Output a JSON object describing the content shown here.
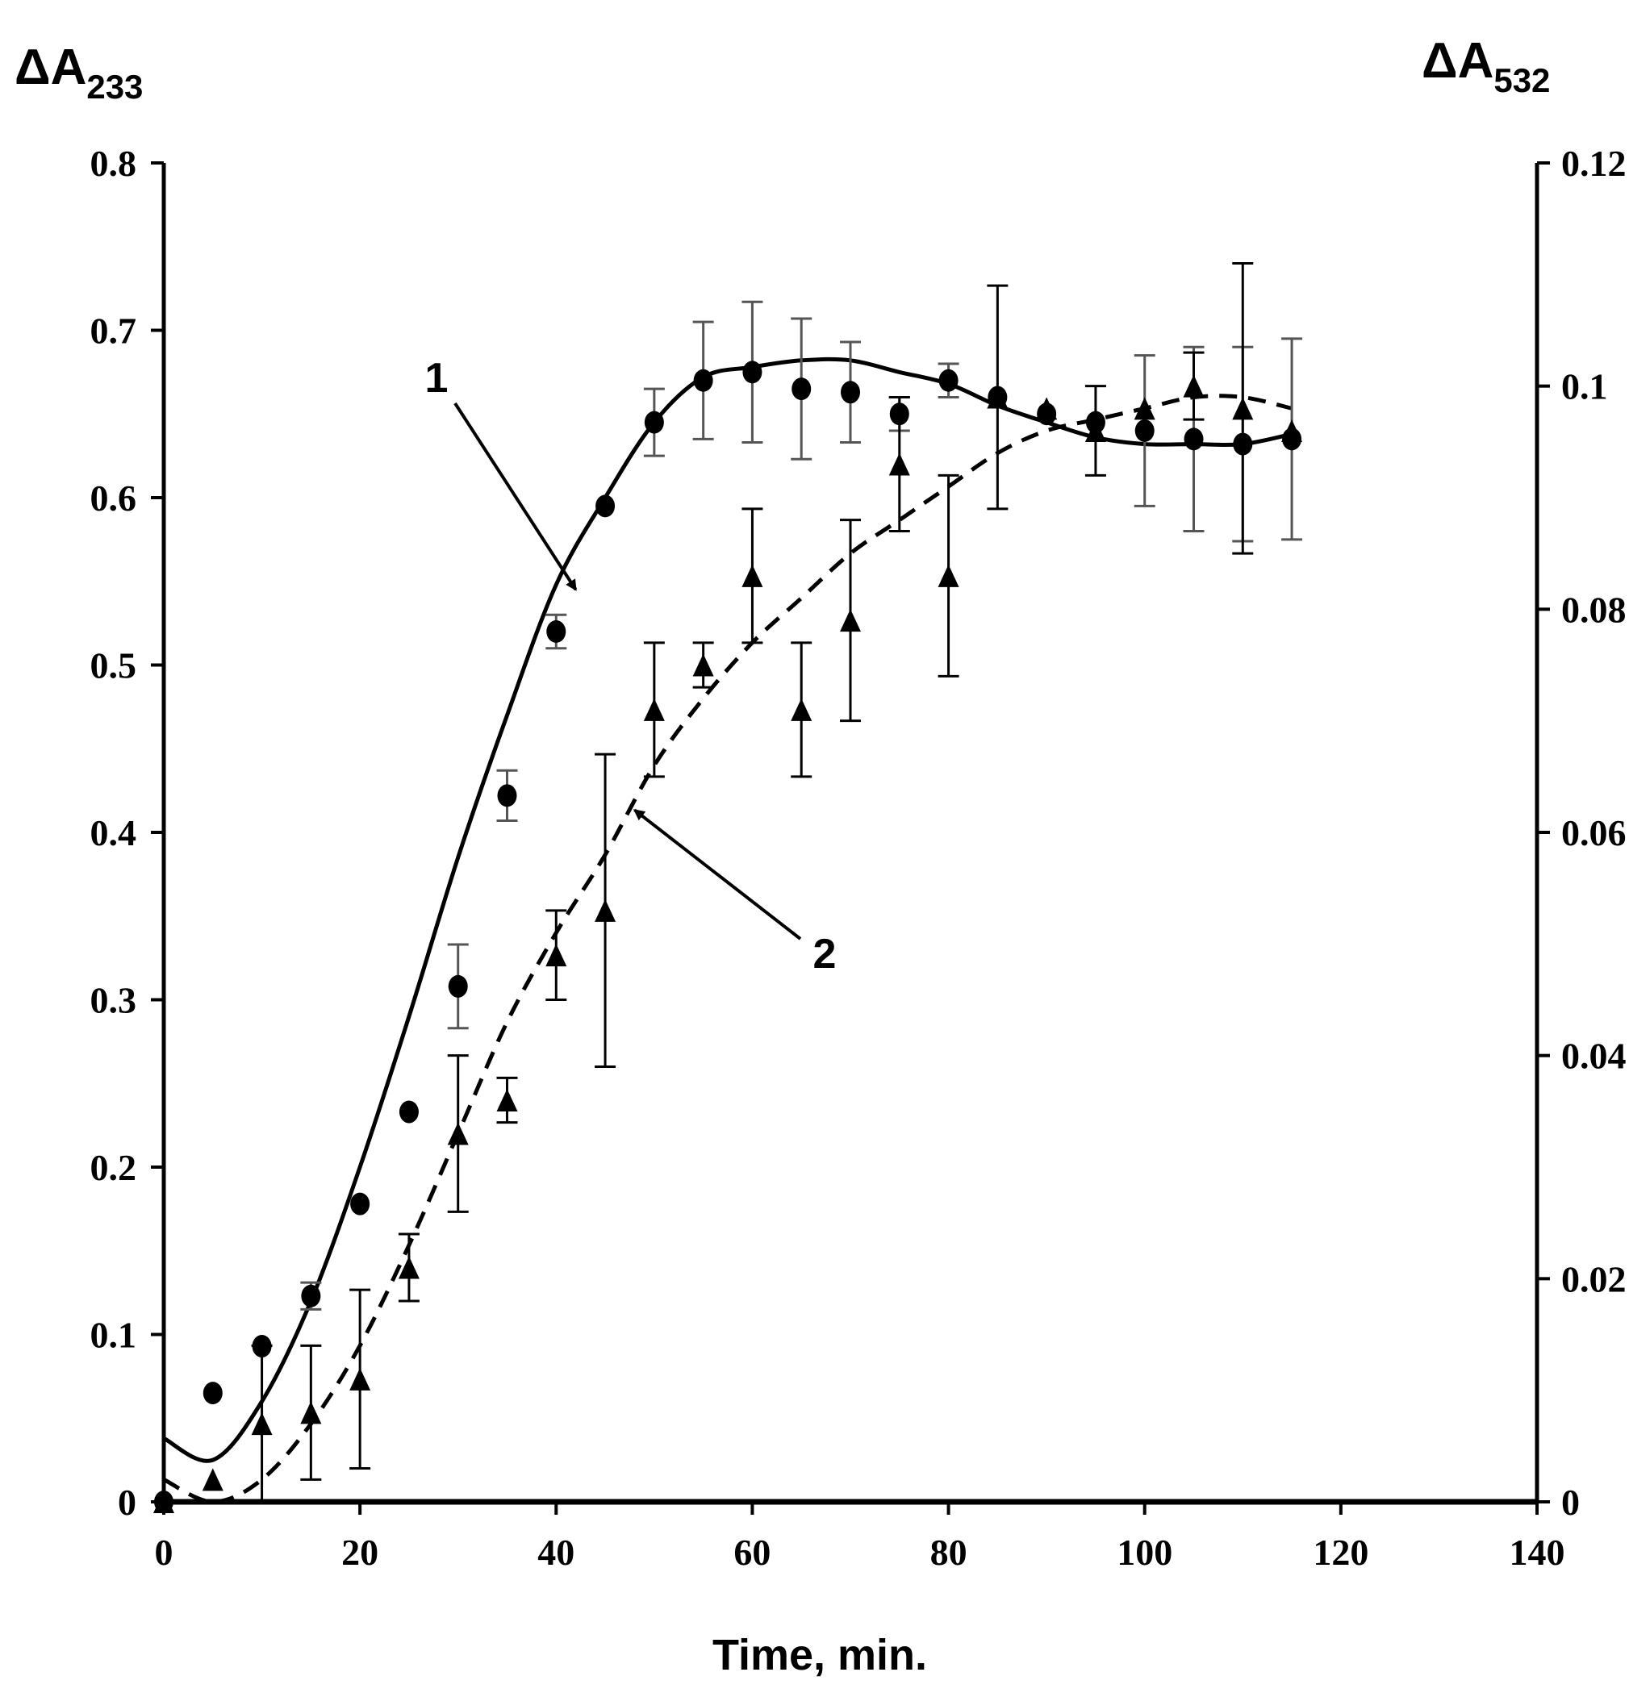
{
  "chart_data": {
    "type": "scatter",
    "xlabel": "Time, min.",
    "ylabel_left": {
      "main": "ΔA",
      "sub": "233"
    },
    "ylabel_right": {
      "main": "ΔA",
      "sub": "532"
    },
    "xlim": [
      0,
      140
    ],
    "ylim_left": [
      0,
      0.8
    ],
    "ylim_right": [
      0,
      0.12
    ],
    "x_ticks": [
      "0",
      "20",
      "40",
      "60",
      "80",
      "100",
      "120",
      "140"
    ],
    "y_ticks_left": [
      "0",
      "0.1",
      "0.2",
      "0.3",
      "0.4",
      "0.5",
      "0.6",
      "0.7",
      "0.8"
    ],
    "y_ticks_right": [
      "0",
      "0.02",
      "0.04",
      "0.06",
      "0.08",
      "0.1",
      "0.12"
    ],
    "grid": false,
    "series": [
      {
        "marker": "circle",
        "axis": "left",
        "line_style": "solid",
        "x": [
          0,
          5,
          10,
          15,
          20,
          25,
          30,
          35,
          40,
          45,
          50,
          55,
          60,
          65,
          70,
          75,
          80,
          85,
          90,
          95,
          100,
          105,
          110,
          115
        ],
        "y": [
          0.0,
          0.065,
          0.093,
          0.123,
          0.178,
          0.233,
          0.308,
          0.422,
          0.52,
          0.595,
          0.645,
          0.67,
          0.675,
          0.665,
          0.663,
          0.65,
          0.67,
          0.66,
          0.65,
          0.645,
          0.64,
          0.635,
          0.632,
          0.635
        ],
        "err": [
          0.0,
          0.0,
          0.0,
          0.008,
          0.0,
          0.0,
          0.025,
          0.015,
          0.01,
          0.0,
          0.02,
          0.035,
          0.042,
          0.042,
          0.03,
          0.01,
          0.01,
          0.0,
          0.0,
          0.0,
          0.045,
          0.055,
          0.058,
          0.06
        ],
        "fit_x": [
          0,
          5,
          10,
          15,
          20,
          25,
          30,
          35,
          40,
          45,
          50,
          55,
          60,
          65,
          70,
          75,
          80,
          85,
          90,
          95,
          100,
          105,
          110,
          115
        ],
        "fit_y": [
          0.038,
          0.025,
          0.06,
          0.12,
          0.2,
          0.29,
          0.385,
          0.47,
          0.548,
          0.6,
          0.645,
          0.672,
          0.678,
          0.682,
          0.682,
          0.675,
          0.668,
          0.655,
          0.645,
          0.636,
          0.632,
          0.632,
          0.632,
          0.638
        ]
      },
      {
        "marker": "triangle",
        "axis": "right",
        "line_style": "dashed",
        "x": [
          0,
          5,
          10,
          15,
          20,
          25,
          30,
          35,
          40,
          45,
          50,
          55,
          60,
          65,
          70,
          75,
          80,
          85,
          90,
          95,
          100,
          105,
          110,
          115
        ],
        "y": [
          0.0,
          0.002,
          0.007,
          0.008,
          0.011,
          0.021,
          0.033,
          0.036,
          0.049,
          0.053,
          0.071,
          0.075,
          0.083,
          0.071,
          0.079,
          0.093,
          0.083,
          0.099,
          0.098,
          0.096,
          0.098,
          0.1,
          0.098,
          0.096
        ],
        "err": [
          0.0,
          0.0,
          0.007,
          0.006,
          0.008,
          0.003,
          0.007,
          0.002,
          0.004,
          0.014,
          0.006,
          0.002,
          0.006,
          0.006,
          0.009,
          0.006,
          0.009,
          0.01,
          0.0,
          0.004,
          0.0,
          0.003,
          0.013,
          0.0
        ],
        "fit_x": [
          0,
          5,
          10,
          15,
          20,
          25,
          30,
          35,
          40,
          45,
          50,
          55,
          60,
          65,
          70,
          75,
          80,
          85,
          90,
          95,
          100,
          105,
          110,
          115
        ],
        "fit_y": [
          0.002,
          0.0,
          0.002,
          0.007,
          0.014,
          0.023,
          0.033,
          0.043,
          0.051,
          0.058,
          0.066,
          0.072,
          0.077,
          0.081,
          0.085,
          0.088,
          0.091,
          0.094,
          0.096,
          0.097,
          0.098,
          0.099,
          0.099,
          0.098
        ]
      }
    ],
    "annotations": [
      {
        "text": "1",
        "points_to": {
          "x": 42,
          "y": 0.545,
          "axis": "left"
        }
      },
      {
        "text": "2",
        "points_to": {
          "x": 48,
          "y": 0.062,
          "axis": "right"
        }
      }
    ]
  }
}
